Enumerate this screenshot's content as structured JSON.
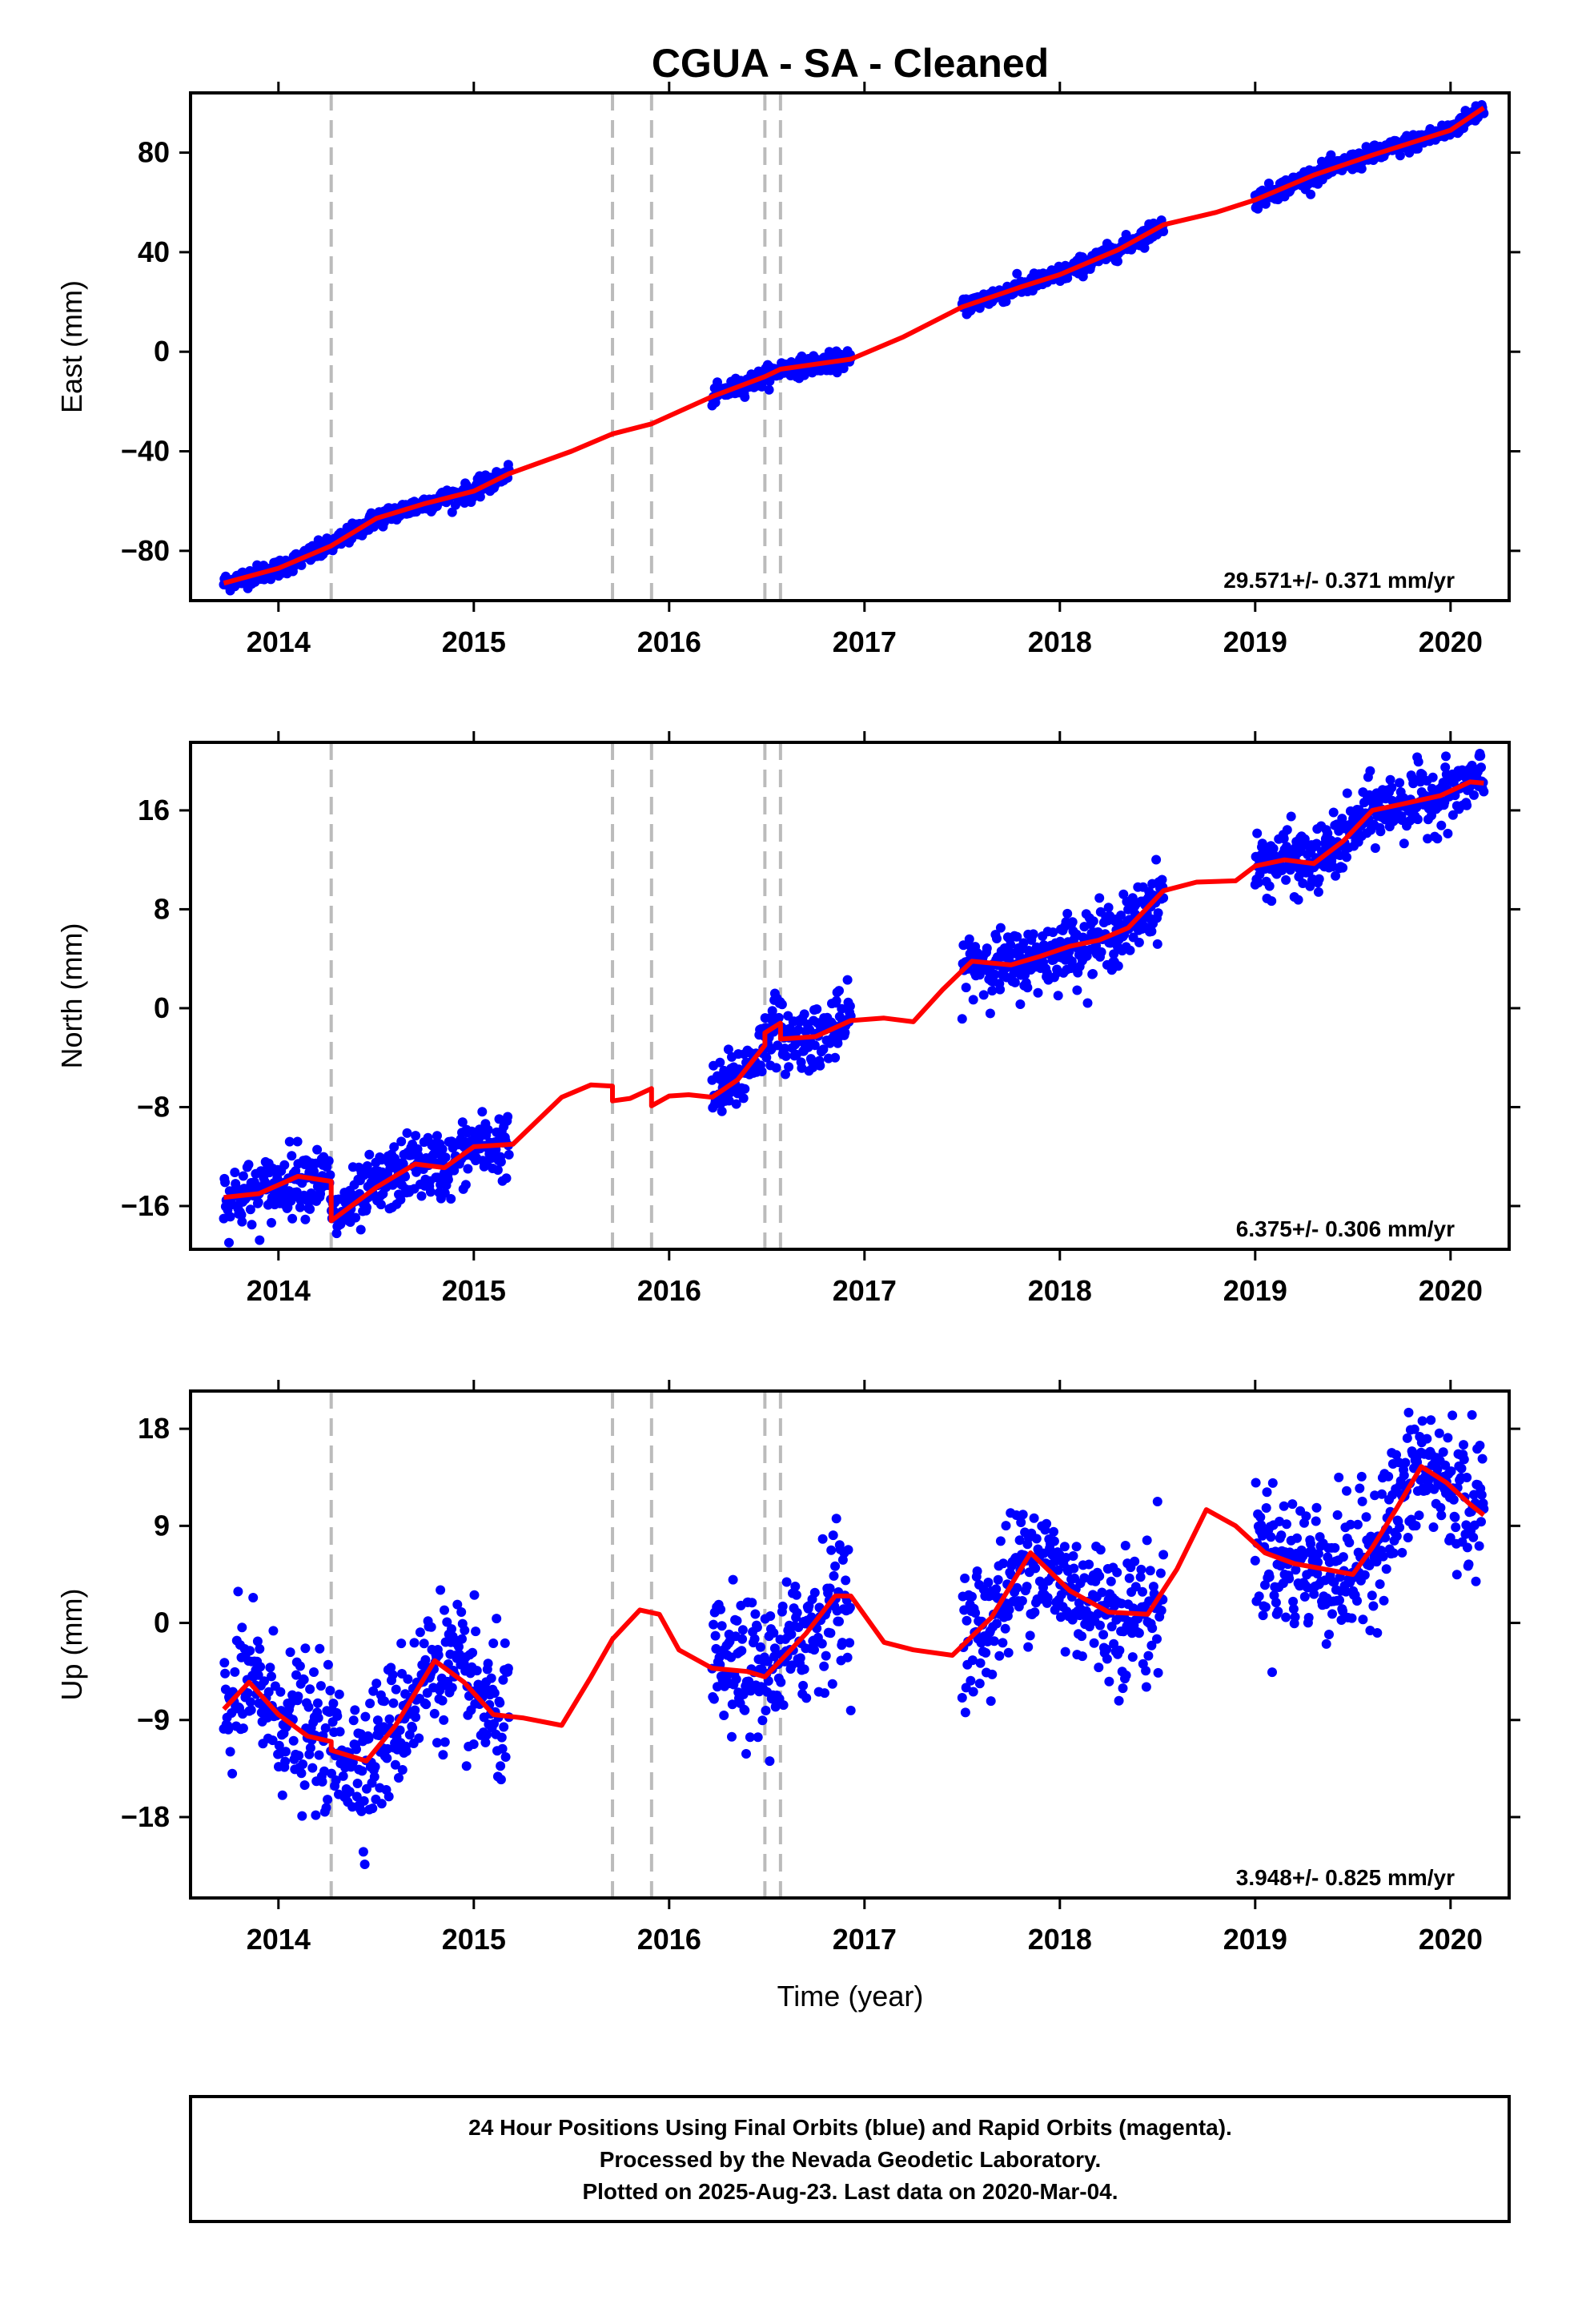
{
  "title": "CGUA  - SA - Cleaned",
  "xlabel": "Time (year)",
  "colors": {
    "observations": "#0000ff",
    "model": "#ff0000",
    "events": "#bbbbbb",
    "frame": "#000000"
  },
  "footer": {
    "line1": "24 Hour Positions Using Final Orbits (blue) and Rapid Orbits (magenta).",
    "line2": "Processed by the Nevada Geodetic Laboratory.",
    "line3": "Plotted on 2025-Aug-23. Last data on 2020-Mar-04."
  },
  "chart_data": [
    {
      "type": "scatter",
      "title": "CGUA  - SA - Cleaned",
      "ylabel": "East (mm)",
      "xlabel": "",
      "xlim": [
        2013.55,
        2020.3
      ],
      "ylim": [
        -100,
        104
      ],
      "xticks": [
        2014,
        2015,
        2016,
        2017,
        2018,
        2019,
        2020
      ],
      "yticks": [
        -80,
        -40,
        0,
        40,
        80
      ],
      "yticklabels": [
        "−80",
        "−40",
        "0",
        "40",
        "80"
      ],
      "event_lines": [
        2014.27,
        2015.71,
        2015.91,
        2016.49,
        2016.57
      ],
      "rate": "29.571+/- 0.371 mm/yr",
      "observation_segments": [
        [
          2013.72,
          2015.18
        ],
        [
          2016.22,
          2016.93
        ],
        [
          2017.5,
          2018.53
        ],
        [
          2019.0,
          2020.17
        ]
      ],
      "observation_scatter_mm": 1.8,
      "model": {
        "x": [
          2013.72,
          2014.0,
          2014.27,
          2014.5,
          2014.75,
          2015.0,
          2015.18,
          2015.5,
          2015.71,
          2015.91,
          2016.22,
          2016.49,
          2016.57,
          2016.93,
          2017.2,
          2017.5,
          2017.8,
          2018.0,
          2018.3,
          2018.53,
          2018.8,
          2019.0,
          2019.3,
          2019.6,
          2019.8,
          2020.0,
          2020.17
        ],
        "y": [
          -93,
          -87,
          -78,
          -67,
          -61,
          -56,
          -49,
          -40,
          -33,
          -29,
          -18,
          -10,
          -7,
          -3,
          6,
          18,
          26,
          31,
          41,
          51,
          56,
          61,
          71,
          79,
          84,
          89,
          98
        ]
      }
    },
    {
      "type": "scatter",
      "ylabel": "North (mm)",
      "xlabel": "",
      "xlim": [
        2013.55,
        2020.3
      ],
      "ylim": [
        -19.5,
        21.5
      ],
      "xticks": [
        2014,
        2015,
        2016,
        2017,
        2018,
        2019,
        2020
      ],
      "yticks": [
        -16,
        -8,
        0,
        8,
        16
      ],
      "yticklabels": [
        "−16",
        "−8",
        "0",
        "8",
        "16"
      ],
      "event_lines": [
        2014.27,
        2015.71,
        2015.91,
        2016.49,
        2016.57
      ],
      "rate": "6.375+/- 0.306 mm/yr",
      "observation_segments": [
        [
          2013.72,
          2015.18
        ],
        [
          2016.22,
          2016.93
        ],
        [
          2017.5,
          2018.53
        ],
        [
          2019.0,
          2020.17
        ]
      ],
      "observation_scatter_mm": 1.3,
      "model": {
        "x": [
          2013.72,
          2013.9,
          2014.1,
          2014.27,
          2014.27,
          2014.5,
          2014.7,
          2014.85,
          2015.0,
          2015.2,
          2015.45,
          2015.6,
          2015.71,
          2015.71,
          2015.8,
          2015.91,
          2015.91,
          2016.0,
          2016.1,
          2016.22,
          2016.35,
          2016.49,
          2016.49,
          2016.57,
          2016.57,
          2016.75,
          2016.93,
          2017.1,
          2017.25,
          2017.4,
          2017.55,
          2017.75,
          2017.9,
          2018.05,
          2018.2,
          2018.35,
          2018.53,
          2018.7,
          2018.9,
          2019.0,
          2019.15,
          2019.3,
          2019.45,
          2019.6,
          2019.75,
          2019.95,
          2020.1,
          2020.17
        ],
        "y": [
          -15.3,
          -15.0,
          -13.6,
          -14.0,
          -17.2,
          -14.5,
          -12.6,
          -12.9,
          -11.2,
          -11.0,
          -7.2,
          -6.2,
          -6.3,
          -7.5,
          -7.3,
          -6.5,
          -7.9,
          -7.1,
          -7.0,
          -7.2,
          -5.8,
          -3.0,
          -2.0,
          -1.2,
          -2.5,
          -2.3,
          -1.0,
          -0.8,
          -1.1,
          1.5,
          3.8,
          3.5,
          4.2,
          5.0,
          5.5,
          6.5,
          9.5,
          10.2,
          10.3,
          11.5,
          12.0,
          11.7,
          13.5,
          16.0,
          16.5,
          17.2,
          18.3,
          18.2
        ]
      }
    },
    {
      "type": "scatter",
      "ylabel": "Up (mm)",
      "xlabel": "Time (year)",
      "xlim": [
        2013.55,
        2020.3
      ],
      "ylim": [
        -25.5,
        21.5
      ],
      "xticks": [
        2014,
        2015,
        2016,
        2017,
        2018,
        2019,
        2020
      ],
      "yticks": [
        -18,
        -9,
        0,
        9,
        18
      ],
      "yticklabels": [
        "−18",
        "−9",
        "0",
        "9",
        "18"
      ],
      "event_lines": [
        2014.27,
        2015.71,
        2015.91,
        2016.49,
        2016.57
      ],
      "rate": "3.948+/- 0.825 mm/yr",
      "observation_segments": [
        [
          2013.72,
          2015.18
        ],
        [
          2016.22,
          2016.93
        ],
        [
          2017.5,
          2018.53
        ],
        [
          2019.0,
          2020.17
        ]
      ],
      "observation_scatter_mm": 3.2,
      "model": {
        "x": [
          2013.72,
          2013.85,
          2014.0,
          2014.15,
          2014.27,
          2014.27,
          2014.45,
          2014.6,
          2014.8,
          2014.95,
          2015.1,
          2015.25,
          2015.45,
          2015.6,
          2015.71,
          2015.85,
          2015.95,
          2016.05,
          2016.22,
          2016.4,
          2016.49,
          2016.57,
          2016.7,
          2016.85,
          2016.93,
          2017.1,
          2017.25,
          2017.45,
          2017.65,
          2017.85,
          2018.05,
          2018.25,
          2018.45,
          2018.6,
          2018.75,
          2018.9,
          2019.05,
          2019.2,
          2019.35,
          2019.5,
          2019.6,
          2019.72,
          2019.85,
          2019.98,
          2020.1,
          2020.17
        ],
        "y": [
          -8.0,
          -5.5,
          -8.5,
          -10.5,
          -11.0,
          -11.8,
          -12.8,
          -9.5,
          -3.5,
          -5.5,
          -8.5,
          -8.8,
          -9.5,
          -5.0,
          -1.5,
          1.2,
          0.8,
          -2.5,
          -4.2,
          -4.5,
          -5.0,
          -3.5,
          -1.0,
          2.5,
          2.5,
          -1.8,
          -2.5,
          -3.0,
          0.5,
          6.5,
          3.0,
          1.0,
          0.8,
          5.0,
          10.5,
          9.0,
          6.5,
          5.5,
          5.0,
          4.5,
          7.0,
          10.5,
          14.5,
          13.0,
          11.0,
          10.0
        ]
      }
    }
  ]
}
